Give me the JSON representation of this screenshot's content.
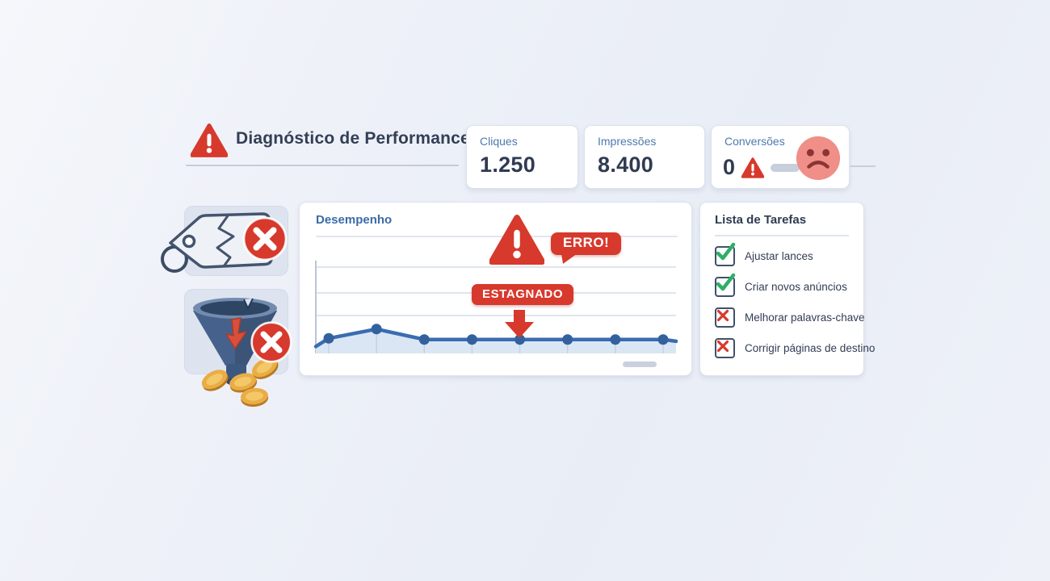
{
  "header": {
    "title": "Diagnóstico de Performance"
  },
  "stats": [
    {
      "label": "Cliques",
      "value": "1.250"
    },
    {
      "label": "Impressões",
      "value": "8.400"
    },
    {
      "label": "Conversões",
      "value": "0"
    }
  ],
  "chart": {
    "title": "Desempenho",
    "error_badge": "ERRO!",
    "status_badge": "ESTAGNADO"
  },
  "chart_data": {
    "type": "line",
    "title": "Desempenho",
    "x": [
      1,
      2,
      3,
      4,
      5,
      6,
      7,
      8
    ],
    "values": [
      26,
      42,
      24,
      24,
      24,
      24,
      24,
      24
    ],
    "lead_in_value": 12,
    "tail_value": 21,
    "ylim": [
      0,
      100
    ],
    "xlabel": "",
    "ylabel": "",
    "grid": true,
    "legend": false,
    "trend": "flat-stagnant",
    "annotations": [
      "ERRO!",
      "ESTAGNADO"
    ]
  },
  "tasks": {
    "title": "Lista de Tarefas",
    "items": [
      {
        "label": "Ajustar lances",
        "state": "done"
      },
      {
        "label": "Criar novos anúncios",
        "state": "done"
      },
      {
        "label": "Melhorar palavras-chave",
        "state": "failed"
      },
      {
        "label": "Corrigir páginas de destino",
        "state": "failed"
      }
    ]
  },
  "icons": {
    "warning-icon": "red triangle with exclamation",
    "error-badge-icon": "red circle with white X",
    "check-icon": "green checkmark",
    "cross-icon": "red X mark",
    "sad-face-icon": "pink frowning face",
    "broken-tag-icon": "cracked price tag",
    "broken-funnel-icon": "cracked funnel with coins"
  },
  "colors": {
    "accent_red": "#d7392c",
    "line_blue": "#3a6cb2",
    "area_blue": "#dbe6f4",
    "green": "#2fae66",
    "navy_text": "#303b52",
    "label_blue": "#4e79ae",
    "background": "#eef1f8"
  }
}
